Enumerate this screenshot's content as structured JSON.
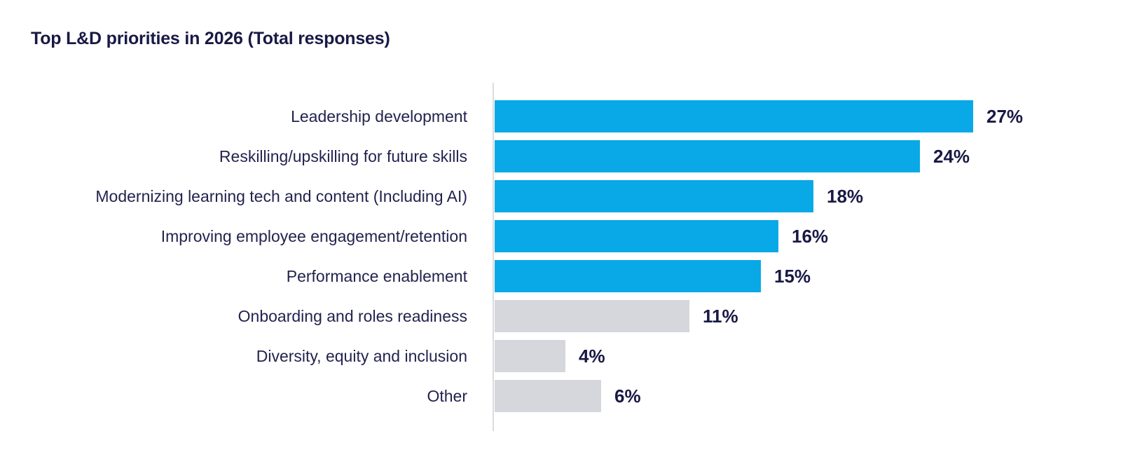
{
  "title": "Top L&D priorities in 2026 (Total responses)",
  "colors": {
    "highlight_bar": "#08a9e6",
    "muted_bar": "#d6d6dd",
    "text_navy": "#191945",
    "axis_line": "#dcdce1",
    "background": "#ffffff"
  },
  "chart_data": {
    "type": "bar",
    "orientation": "horizontal",
    "title": "Top L&D priorities in 2026 (Total responses)",
    "categories": [
      "Leadership development",
      "Reskilling/upskilling for future skills",
      "Modernizing learning tech and content (Including AI)",
      "Improving employee engagement/retention",
      "Performance enablement",
      "Onboarding and roles readiness",
      "Diversity, equity and inclusion",
      "Other"
    ],
    "values": [
      27,
      24,
      18,
      16,
      15,
      11,
      4,
      6
    ],
    "value_labels": [
      "27%",
      "24%",
      "18%",
      "16%",
      "15%",
      "11%",
      "4%",
      "6%"
    ],
    "bar_colors": [
      "#08a9e6",
      "#08a9e6",
      "#08a9e6",
      "#08a9e6",
      "#08a9e6",
      "#d6d6dd",
      "#d6d6dd",
      "#d6d6dd"
    ],
    "unit": "%",
    "xlim": [
      0,
      30
    ],
    "grid": false,
    "legend": null,
    "value_label_position": "right-of-bar",
    "sorted": false
  }
}
